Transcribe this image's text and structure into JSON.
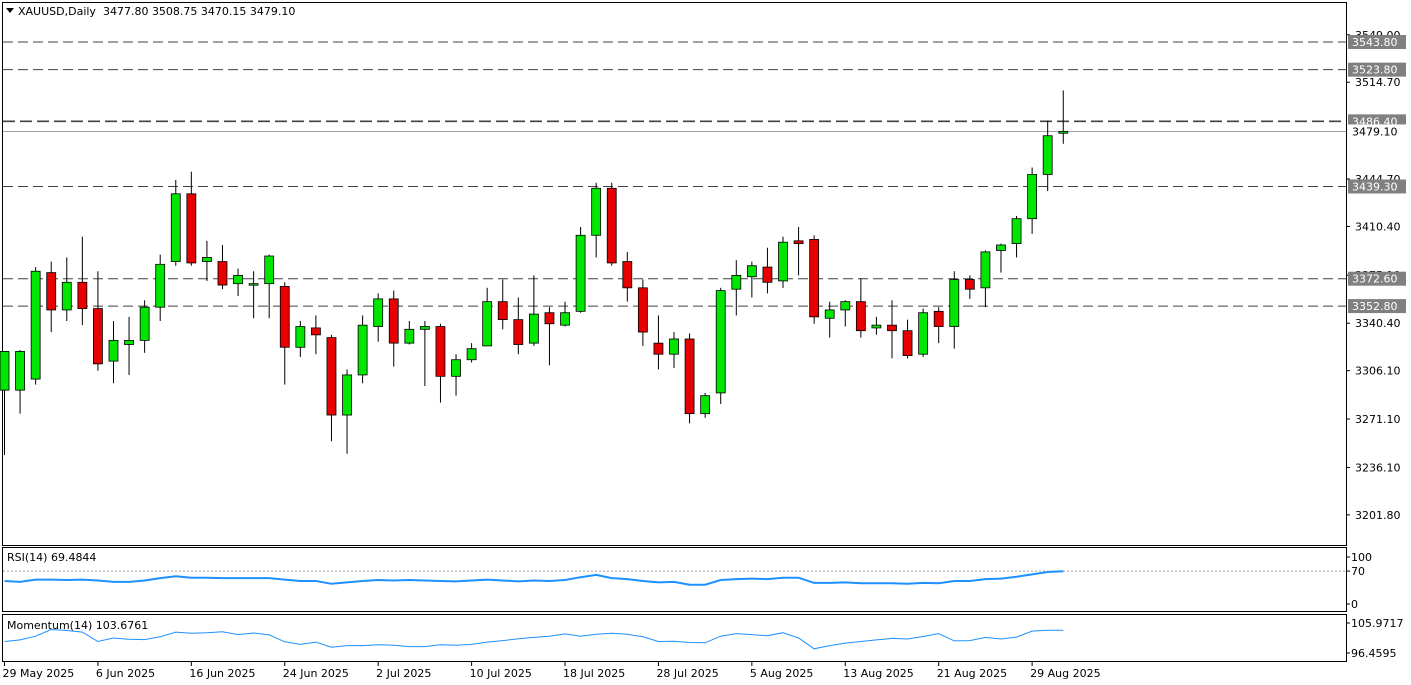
{
  "header": {
    "symbol": "XAUUSD,Daily",
    "ohlc": "3477.80 3508.75 3470.15 3479.10"
  },
  "indicators": {
    "rsi": {
      "label": "RSI(14) 69.4844",
      "ticks": [
        "100",
        "70",
        "0"
      ]
    },
    "momentum": {
      "label": "Momentum(14) 103.6761",
      "ticks": [
        "105.9717",
        "96.4595"
      ]
    }
  },
  "colors": {
    "bull": "#00e600",
    "bear": "#e60000",
    "indicator_line": "#1e90ff",
    "dashed_level": "#404040",
    "price_line": "#a0a0a0"
  },
  "chart_data": [
    {
      "type": "candlestick",
      "title": "XAUUSD,Daily",
      "y_ticks": [
        3549.0,
        3514.7,
        3444.7,
        3410.4,
        3375.1,
        3340.4,
        3306.1,
        3271.1,
        3236.1,
        3201.8
      ],
      "y_tick_labels": [
        "3549.00",
        "3514.70",
        "3444.70",
        "3410.40",
        "3375.10",
        "3340.40",
        "3306.10",
        "3271.10",
        "3236.10",
        "3201.80"
      ],
      "ylim": [
        3180,
        3572
      ],
      "levels": [
        {
          "label": "3543.80",
          "value": 3543.8
        },
        {
          "label": "3523.80",
          "value": 3523.8
        },
        {
          "label": "3486.40",
          "value": 3486.4
        },
        {
          "label": "3439.30",
          "value": 3439.3
        },
        {
          "label": "3372.60",
          "value": 3372.6
        },
        {
          "label": "3352.80",
          "value": 3352.8
        }
      ],
      "current_price": {
        "label": "3479.10",
        "value": 3479.1
      },
      "x_labels": [
        {
          "label": "29 May 2025",
          "index": 0
        },
        {
          "label": "6 Jun 2025",
          "index": 6
        },
        {
          "label": "16 Jun 2025",
          "index": 12
        },
        {
          "label": "24 Jun 2025",
          "index": 18
        },
        {
          "label": "2 Jul 2025",
          "index": 24
        },
        {
          "label": "10 Jul 2025",
          "index": 30
        },
        {
          "label": "18 Jul 2025",
          "index": 36
        },
        {
          "label": "28 Jul 2025",
          "index": 42
        },
        {
          "label": "5 Aug 2025",
          "index": 48
        },
        {
          "label": "13 Aug 2025",
          "index": 54
        },
        {
          "label": "21 Aug 2025",
          "index": 60
        },
        {
          "label": "29 Aug 2025",
          "index": 66
        }
      ],
      "candles": [
        [
          3292,
          3320,
          3245,
          3320
        ],
        [
          3292,
          3320,
          3275,
          3321
        ],
        [
          3300,
          3378,
          3296,
          3381
        ],
        [
          3377,
          3350,
          3334,
          3385
        ],
        [
          3350,
          3370,
          3342,
          3388
        ],
        [
          3370,
          3351,
          3339,
          3403
        ],
        [
          3351,
          3311,
          3306,
          3378
        ],
        [
          3313,
          3328,
          3297,
          3342
        ],
        [
          3325,
          3328,
          3303,
          3345
        ],
        [
          3328,
          3352,
          3319,
          3357
        ],
        [
          3352,
          3383,
          3342,
          3390
        ],
        [
          3385,
          3434,
          3382,
          3444
        ],
        [
          3434,
          3384,
          3382,
          3450
        ],
        [
          3385,
          3388,
          3371,
          3400
        ],
        [
          3385,
          3368,
          3365,
          3397
        ],
        [
          3369,
          3375,
          3360,
          3380
        ],
        [
          3368,
          3369,
          3344,
          3378
        ],
        [
          3369,
          3389,
          3344,
          3390
        ],
        [
          3367,
          3323,
          3296,
          3370
        ],
        [
          3323,
          3338,
          3316,
          3342
        ],
        [
          3337,
          3332,
          3318,
          3346
        ],
        [
          3330,
          3274,
          3255,
          3332
        ],
        [
          3274,
          3303,
          3246,
          3307
        ],
        [
          3303,
          3339,
          3297,
          3346
        ],
        [
          3338,
          3358,
          3327,
          3362
        ],
        [
          3358,
          3326,
          3309,
          3364
        ],
        [
          3326,
          3336,
          3325,
          3342
        ],
        [
          3336,
          3338,
          3295,
          3342
        ],
        [
          3338,
          3302,
          3283,
          3340
        ],
        [
          3302,
          3314,
          3288,
          3318
        ],
        [
          3314,
          3322,
          3312,
          3326
        ],
        [
          3324,
          3356,
          3324,
          3366
        ],
        [
          3356,
          3343,
          3336,
          3372
        ],
        [
          3343,
          3325,
          3318,
          3359
        ],
        [
          3326,
          3347,
          3324,
          3375
        ],
        [
          3348,
          3340,
          3310,
          3352
        ],
        [
          3339,
          3348,
          3338,
          3356
        ],
        [
          3349,
          3404,
          3348,
          3410
        ],
        [
          3404,
          3438,
          3388,
          3442
        ],
        [
          3438,
          3384,
          3382,
          3442
        ],
        [
          3385,
          3366,
          3356,
          3392
        ],
        [
          3366,
          3334,
          3324,
          3372
        ],
        [
          3326,
          3318,
          3307,
          3346
        ],
        [
          3318,
          3329,
          3308,
          3334
        ],
        [
          3329,
          3275,
          3268,
          3333
        ],
        [
          3275,
          3288,
          3272,
          3290
        ],
        [
          3290,
          3364,
          3282,
          3366
        ],
        [
          3365,
          3375,
          3346,
          3386
        ],
        [
          3374,
          3382,
          3359,
          3385
        ],
        [
          3381,
          3370,
          3362,
          3395
        ],
        [
          3371,
          3399,
          3366,
          3403
        ],
        [
          3400,
          3398,
          3375,
          3410
        ],
        [
          3401,
          3345,
          3340,
          3404
        ],
        [
          3344,
          3350,
          3330,
          3356
        ],
        [
          3350,
          3356,
          3338,
          3357
        ],
        [
          3356,
          3335,
          3330,
          3373
        ],
        [
          3337,
          3339,
          3332,
          3345
        ],
        [
          3339,
          3335,
          3315,
          3357
        ],
        [
          3335,
          3317,
          3315,
          3343
        ],
        [
          3318,
          3348,
          3316,
          3351
        ],
        [
          3349,
          3338,
          3326,
          3352
        ],
        [
          3338,
          3372,
          3322,
          3378
        ],
        [
          3372,
          3365,
          3358,
          3375
        ],
        [
          3366,
          3392,
          3352,
          3393
        ],
        [
          3393,
          3397,
          3377,
          3398
        ],
        [
          3398,
          3416,
          3388,
          3418
        ],
        [
          3416,
          3448,
          3405,
          3453
        ],
        [
          3448,
          3476,
          3436,
          3487
        ],
        [
          3477.8,
          3479.1,
          3470.15,
          3508.75
        ]
      ]
    },
    {
      "type": "line",
      "title": "RSI(14) 69.4844",
      "ylim": [
        0,
        100
      ],
      "y_ticks": [
        100,
        70,
        0
      ],
      "series": [
        {
          "values": [
            49,
            47,
            52,
            52,
            51,
            52,
            50,
            47,
            47,
            50,
            55,
            59,
            56,
            56,
            55,
            55,
            55,
            55,
            52,
            49,
            49,
            43,
            46,
            49,
            51,
            50,
            51,
            50,
            49,
            48,
            50,
            52,
            50,
            48,
            50,
            49,
            51,
            57,
            62,
            55,
            53,
            49,
            46,
            47,
            41,
            41,
            51,
            53,
            54,
            53,
            56,
            56,
            45,
            45,
            46,
            44,
            44,
            44,
            43,
            45,
            44,
            49,
            49,
            53,
            54,
            58,
            63,
            68,
            69.5
          ]
        }
      ]
    },
    {
      "type": "line",
      "title": "Momentum(14) 103.6761",
      "y_ticks": [
        105.9717,
        96.4595
      ],
      "series": [
        {
          "values": [
            100.1,
            100.6,
            101.8,
            103.9,
            103.6,
            103.1,
            100.1,
            101.2,
            100.8,
            100.7,
            101.6,
            103.1,
            102.7,
            102.9,
            103.2,
            102.3,
            102.8,
            102.2,
            100.0,
            99.2,
            99.9,
            98.3,
            98.8,
            98.8,
            99.1,
            98.9,
            98.5,
            98.5,
            99.1,
            98.9,
            99.2,
            99.9,
            100.4,
            101.0,
            101.4,
            101.8,
            102.5,
            101.8,
            102.4,
            102.7,
            102.4,
            101.6,
            100.1,
            100.2,
            99.8,
            99.7,
            101.8,
            102.6,
            102.3,
            101.9,
            102.9,
            101.2,
            97.8,
            98.8,
            99.6,
            100.1,
            100.6,
            101.1,
            100.9,
            101.7,
            102.6,
            100.3,
            100.4,
            101.4,
            100.9,
            101.5,
            103.4,
            103.7,
            103.7
          ]
        }
      ]
    }
  ]
}
